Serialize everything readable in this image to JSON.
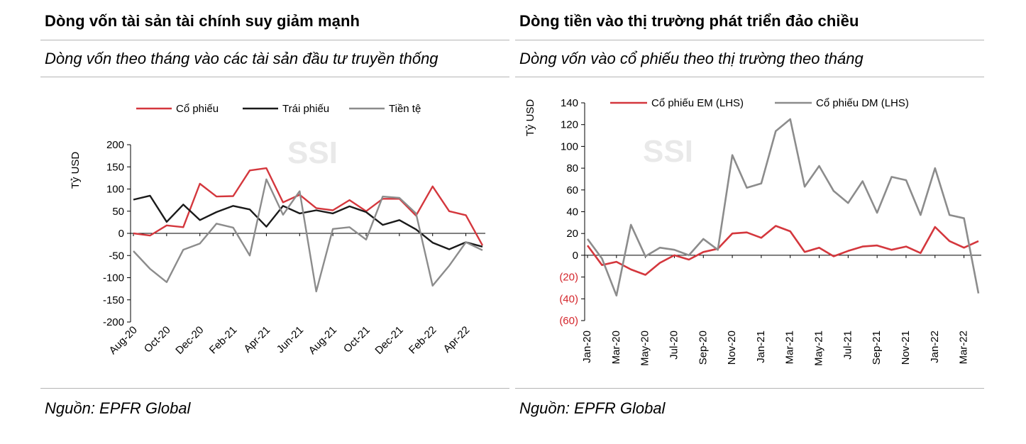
{
  "left": {
    "title": "Dòng vốn tài sản tài chính suy giảm mạnh",
    "subtitle": "Dòng vốn theo tháng vào các tài sản đầu tư truyền thống",
    "source": "Nguồn: EPFR Global",
    "watermark": "SSI"
  },
  "right": {
    "title": "Dòng tiền vào thị trường phát triển đảo chiều",
    "subtitle": "Dòng vốn vào cổ phiếu theo thị trường theo tháng",
    "source": "Nguồn: EPFR Global",
    "watermark": "SSI"
  },
  "chart_data": [
    {
      "type": "line",
      "ylabel": "Tỷ USD",
      "ylim": [
        -200,
        200
      ],
      "yticks": [
        200,
        150,
        100,
        50,
        0,
        -50,
        -100,
        -150,
        -200
      ],
      "ytick_labels": [
        "200",
        "150",
        "100",
        "50",
        "0",
        "-50",
        "-100",
        "-150",
        "-200"
      ],
      "xtick_labels": [
        "Aug-20",
        "Oct-20",
        "Dec-20",
        "Feb-21",
        "Apr-21",
        "Jun-21",
        "Aug-21",
        "Oct-21",
        "Dec-21",
        "Feb-22",
        "Apr-22"
      ],
      "legend_position": "top",
      "series": [
        {
          "name": "Cổ phiếu",
          "color": "#d4373d",
          "values": [
            0,
            -5,
            18,
            14,
            112,
            83,
            84,
            142,
            147,
            70,
            87,
            57,
            52,
            75,
            50,
            78,
            78,
            40,
            106,
            50,
            41,
            -27
          ]
        },
        {
          "name": "Trái phiếu",
          "color": "#1a1a1a",
          "values": [
            76,
            85,
            26,
            65,
            30,
            48,
            62,
            54,
            15,
            62,
            45,
            52,
            45,
            61,
            48,
            19,
            30,
            9,
            -21,
            -36,
            -20,
            -30
          ]
        },
        {
          "name": "Tiền tệ",
          "color": "#8c8c8c",
          "values": [
            -40,
            -80,
            -110,
            -37,
            -23,
            22,
            13,
            -50,
            122,
            42,
            95,
            -131,
            10,
            14,
            -14,
            83,
            80,
            45,
            -118,
            -73,
            -20,
            -38
          ]
        }
      ]
    },
    {
      "type": "line",
      "ylabel": "Tỷ USD",
      "ylim": [
        -60,
        140
      ],
      "yticks": [
        140,
        120,
        100,
        80,
        60,
        40,
        20,
        0,
        -20,
        -40,
        -60
      ],
      "ytick_labels": [
        "140",
        "120",
        "100",
        "80",
        "60",
        "40",
        "20",
        "0",
        "(20)",
        "(40)",
        "(60)"
      ],
      "xtick_labels": [
        "Jan-20",
        "Mar-20",
        "May-20",
        "Jul-20",
        "Sep-20",
        "Nov-20",
        "Jan-21",
        "Mar-21",
        "May-21",
        "Jul-21",
        "Sep-21",
        "Nov-21",
        "Jan-22",
        "Mar-22"
      ],
      "legend_position": "top",
      "series": [
        {
          "name": "Cổ phiếu EM (LHS)",
          "color": "#d4373d",
          "values": [
            9,
            -9,
            -6,
            -13,
            -18,
            -7,
            0,
            -4,
            3,
            6,
            20,
            21,
            16,
            27,
            22,
            3,
            7,
            -1,
            4,
            8,
            9,
            5,
            8,
            2,
            26,
            13,
            7,
            13
          ]
        },
        {
          "name": "Cổ phiếu DM (LHS)",
          "color": "#8c8c8c",
          "values": [
            15,
            -3,
            -37,
            28,
            -1,
            7,
            5,
            0,
            15,
            5,
            92,
            62,
            66,
            114,
            125,
            63,
            82,
            59,
            48,
            68,
            39,
            72,
            69,
            37,
            80,
            37,
            34,
            -35
          ]
        }
      ]
    }
  ]
}
